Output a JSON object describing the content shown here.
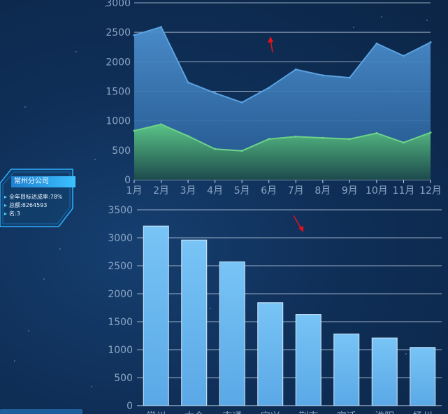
{
  "chart_data": [
    {
      "type": "area",
      "categories": [
        "1月",
        "2月",
        "3月",
        "4月",
        "5月",
        "6月",
        "7月",
        "8月",
        "9月",
        "10月",
        "11月",
        "12月"
      ],
      "ylim": [
        0,
        3000
      ],
      "yticks": [
        0,
        500,
        1000,
        1500,
        2000,
        2500,
        3000
      ],
      "grid": true,
      "series": [
        {
          "values": [
            2450,
            2590,
            1650,
            1470,
            1310,
            1560,
            1870,
            1770,
            1730,
            2310,
            2100,
            2330
          ],
          "color": "#5aa2e0"
        },
        {
          "values": [
            830,
            940,
            740,
            520,
            490,
            690,
            730,
            710,
            690,
            790,
            630,
            800
          ],
          "color": "#6dd28a"
        }
      ]
    },
    {
      "type": "bar",
      "categories": [
        "常州",
        "太仓",
        "南通",
        "宜兴",
        "荆南",
        "宿迁",
        "淮阴",
        "扬州"
      ],
      "values": [
        3210,
        2960,
        2570,
        1840,
        1630,
        1280,
        1210,
        1040
      ],
      "ylim": [
        0,
        3500
      ],
      "yticks": [
        0,
        500,
        1000,
        1500,
        2000,
        2500,
        3000,
        3500
      ],
      "grid": true,
      "color": "#6dbaf0"
    }
  ],
  "company_card": {
    "title": "常州分公司",
    "lines": [
      "全年目标达成率:78%",
      "总额:8264593",
      "名:3"
    ]
  },
  "colors": {
    "arrow": "#e8101a"
  }
}
